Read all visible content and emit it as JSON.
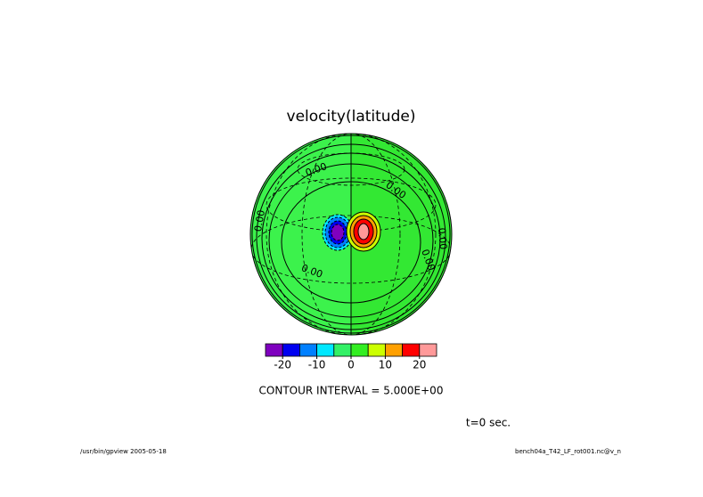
{
  "chart_data": {
    "type": "contour",
    "title": "velocity(latitude)",
    "contour_labels": [
      "0.00",
      "0.00",
      "0.00",
      "0.00",
      "0.00",
      "0.00"
    ],
    "colorbar": {
      "range": [
        -25,
        25
      ],
      "ticks": [
        -20,
        -10,
        0,
        10,
        20
      ],
      "colors": [
        "#7f00bf",
        "#0000f0",
        "#0080ff",
        "#00e8ff",
        "#33f066",
        "#33ee22",
        "#ccff00",
        "#ffa000",
        "#ff0000",
        "#ff9999"
      ]
    },
    "contour_interval": "CONTOUR INTERVAL = 5.000E+00",
    "time": "t=0 sec."
  },
  "footer": {
    "left": "/usr/bin/gpview  2005-05-18",
    "right": "bench04a_T42_LF_rot001.nc@v_n"
  }
}
